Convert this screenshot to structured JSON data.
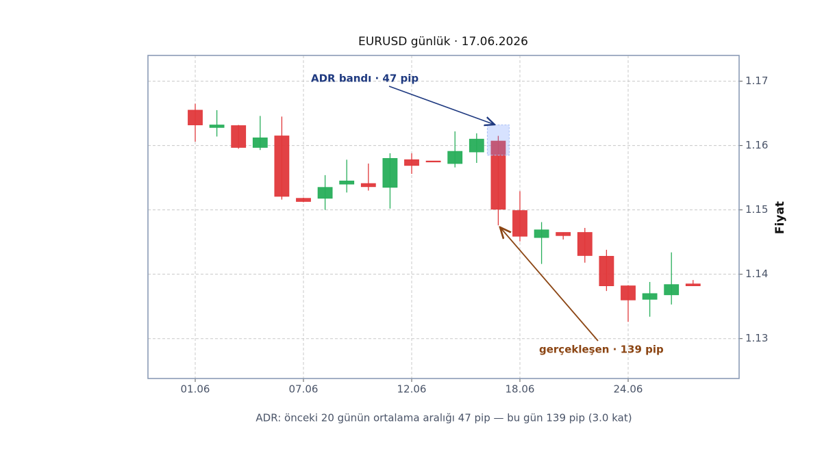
{
  "chart_data": {
    "type": "candlestick",
    "title": "EURUSD günlük · 17.06.2026",
    "y_label": "Fiyat",
    "note": "ADR: önceki 20 günün ortalama aralığı 47 pip — bu gün 139 pip (3.0 kat)",
    "categories": [
      "01.06",
      null,
      null,
      null,
      null,
      "07.06",
      null,
      null,
      null,
      null,
      "12.06",
      null,
      null,
      null,
      null,
      "18.06",
      null,
      null,
      null,
      null,
      "24.06",
      null,
      null,
      null
    ],
    "open": [
      1.1655,
      1.1628,
      1.1631,
      1.1597,
      1.1615,
      1.1518,
      1.1518,
      1.154,
      1.1541,
      1.1535,
      1.1578,
      1.1576,
      1.1572,
      1.159,
      1.1607,
      1.1499,
      1.1457,
      1.1465,
      1.1465,
      1.1428,
      1.1382,
      1.1361,
      1.1368,
      1.1385
    ],
    "high": [
      1.1665,
      1.1655,
      1.1632,
      1.1646,
      1.1645,
      1.1519,
      1.1554,
      1.1578,
      1.1572,
      1.1588,
      1.1588,
      1.1576,
      1.1622,
      1.1619,
      1.1615,
      1.1529,
      1.1481,
      1.1465,
      1.1472,
      1.1438,
      1.1383,
      1.1388,
      1.1434,
      1.1391
    ],
    "low": [
      1.1606,
      1.1614,
      1.1595,
      1.1593,
      1.1516,
      1.1512,
      1.15,
      1.1527,
      1.153,
      1.1502,
      1.1556,
      1.1575,
      1.1566,
      1.1573,
      1.1476,
      1.1451,
      1.1416,
      1.1454,
      1.1418,
      1.1374,
      1.1326,
      1.1334,
      1.1353,
      1.1382
    ],
    "close": [
      1.1632,
      1.1632,
      1.1597,
      1.1612,
      1.1521,
      1.1513,
      1.1535,
      1.1545,
      1.1536,
      1.158,
      1.1569,
      1.1575,
      1.1591,
      1.161,
      1.1501,
      1.1459,
      1.1469,
      1.146,
      1.1429,
      1.1382,
      1.136,
      1.137,
      1.1384,
      1.1382
    ],
    "up_color": "#27ae5a",
    "down_color": "#e0383b",
    "adr_band": [
      1.1585,
      1.1632
    ],
    "annotations": [
      {
        "text": "ADR bandı · 47 pip",
        "color": "#1f3a80"
      },
      {
        "text": "gerçekleşen · 139 pip",
        "color": "#8b4513"
      }
    ],
    "ylim": [
      1.1238,
      1.174
    ],
    "yticks": [
      1.13,
      1.14,
      1.15,
      1.16,
      1.17
    ],
    "grid": true
  }
}
